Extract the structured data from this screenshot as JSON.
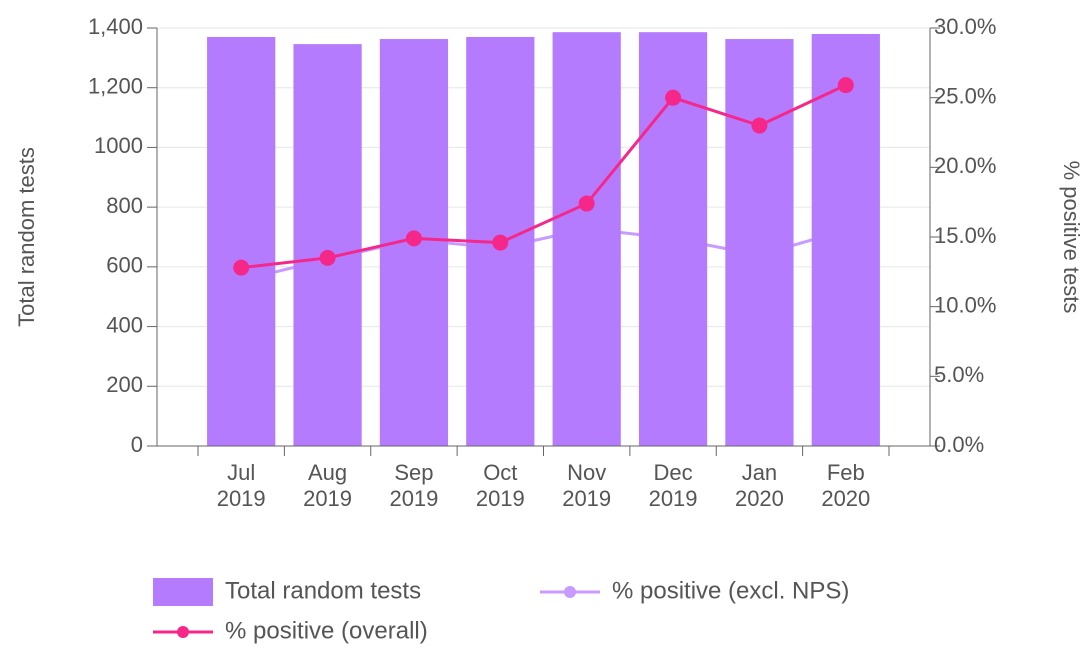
{
  "chart_data": {
    "type": "bar",
    "categories": [
      "Jul 2019",
      "Aug 2019",
      "Sep 2019",
      "Oct 2019",
      "Nov 2019",
      "Dec 2019",
      "Jan 2020",
      "Feb 2020"
    ],
    "series": [
      {
        "name": "Total random tests",
        "type": "bar",
        "color": "#b57bff",
        "values": [
          1370,
          1346,
          1363,
          1370,
          1386,
          1386,
          1363,
          1380
        ]
      },
      {
        "name": "% positive (excl. NPS)",
        "type": "line",
        "axis": "y2",
        "color": "#c79bff",
        "values": [
          11.9,
          13.4,
          14.8,
          14.2,
          15.6,
          14.9,
          13.7,
          15.5
        ]
      },
      {
        "name": "% positive (overall)",
        "type": "line",
        "axis": "y2",
        "color": "#f5288a",
        "values": [
          12.8,
          13.5,
          14.9,
          14.6,
          17.4,
          25.0,
          23.0,
          25.9
        ]
      }
    ],
    "ylabel": "Total random tests",
    "y2label": "% positive tests",
    "ylim": [
      0,
      1400
    ],
    "yticks": [
      0,
      200,
      400,
      600,
      800,
      1000,
      {
        "value": 1200,
        "label": "1,200"
      },
      {
        "value": 1400,
        "label": "1,400"
      }
    ],
    "y2lim": [
      0,
      30
    ],
    "y2ticks": [
      {
        "value": 0,
        "label": "0.0%"
      },
      {
        "value": 5,
        "label": "5.0%"
      },
      {
        "value": 10,
        "label": "10.0%"
      },
      {
        "value": 15,
        "label": "15.0%"
      },
      {
        "value": 20,
        "label": "20.0%"
      },
      {
        "value": 25,
        "label": "25.0%"
      },
      {
        "value": 30,
        "label": "30.0%"
      }
    ],
    "grid": true,
    "legend": "bottom"
  }
}
